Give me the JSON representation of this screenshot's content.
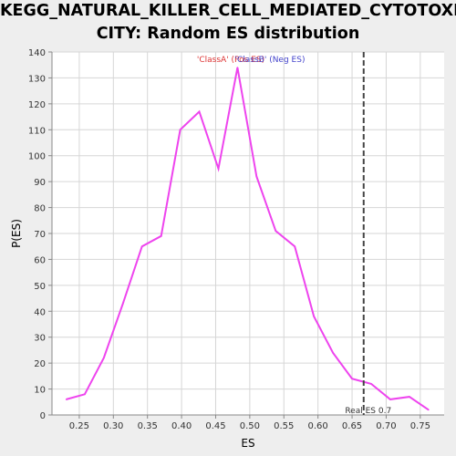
{
  "chart_data": {
    "type": "line",
    "title_lines": [
      "KEGG_NATURAL_KILLER_CELL_MEDIATED_CYTOTOXI",
      "CITY: Random ES distribution"
    ],
    "xlabel": "ES",
    "ylabel": "P(ES)",
    "xlim": [
      0.21,
      0.785
    ],
    "ylim": [
      0,
      140
    ],
    "xticks": [
      "0.25",
      "0.30",
      "0.35",
      "0.40",
      "0.45",
      "0.50",
      "0.55",
      "0.60",
      "0.65",
      "0.70",
      "0.75"
    ],
    "yticks": [
      "0",
      "10",
      "20",
      "30",
      "40",
      "50",
      "60",
      "70",
      "80",
      "90",
      "100",
      "110",
      "120",
      "130",
      "140"
    ],
    "grid": true,
    "series": [
      {
        "color": "#ee44ee",
        "x": [
          0.231,
          0.258,
          0.286,
          0.314,
          0.342,
          0.37,
          0.398,
          0.426,
          0.454,
          0.482,
          0.51,
          0.538,
          0.566,
          0.594,
          0.622,
          0.65,
          0.678,
          0.706,
          0.734,
          0.762
        ],
        "y": [
          6,
          8,
          22,
          43,
          65,
          69,
          110,
          117,
          95,
          134,
          92,
          71,
          65,
          38,
          24,
          14,
          12,
          6,
          7,
          2
        ]
      }
    ],
    "reference_line": {
      "x": 0.667,
      "label": "Real ES 0.7",
      "color": "#444444"
    },
    "legend": [
      {
        "text": "'ClassA' (Pos ES)",
        "color": "#dd3333"
      },
      {
        "text": "'ClassB' (Neg ES)",
        "color": "#4444cc"
      }
    ],
    "legend_position": "top-center"
  }
}
